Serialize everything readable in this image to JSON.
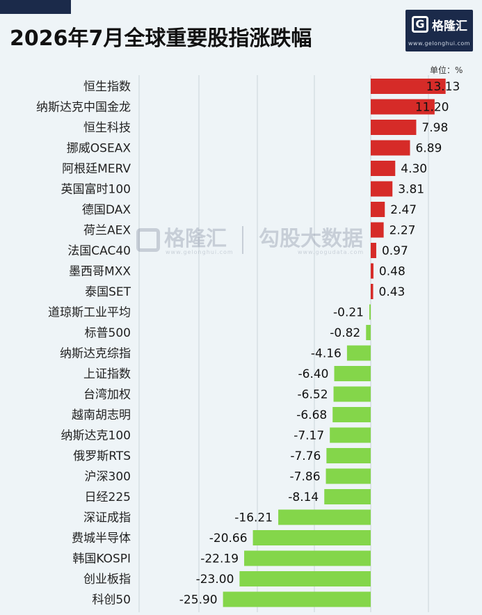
{
  "header": {
    "title": "2026年7月全球重要股指涨跌幅",
    "unit": "单位：%"
  },
  "logo": {
    "name": "格隆汇",
    "url": "www.gelonghui.com"
  },
  "watermark": {
    "brand": "格隆汇",
    "brand_url": "www.gelonghui.com",
    "partner": "勾股大数据",
    "partner_url": "www.gogudata.com"
  },
  "colors": {
    "positive": "#d62b28",
    "negative": "#84d64a",
    "gridline": "#c9d3da"
  },
  "chart_data": {
    "type": "bar",
    "orientation": "horizontal",
    "title": "2026年7月全球重要股指涨跌幅",
    "unit": "%",
    "categories": [
      "恒生指数",
      "纳斯达克中国金龙",
      "恒生科技",
      "挪威OSEAX",
      "阿根廷MERV",
      "英国富时100",
      "德国DAX",
      "荷兰AEX",
      "法国CAC40",
      "墨西哥MXX",
      "泰国SET",
      "道琼斯工业平均",
      "标普500",
      "纳斯达克综指",
      "上证指数",
      "台湾加权",
      "越南胡志明",
      "纳斯达克100",
      "俄罗斯RTS",
      "沪深300",
      "日经225",
      "深证成指",
      "费城半导体",
      "韩国KOSPI",
      "创业板指",
      "科创50"
    ],
    "values": [
      13.13,
      11.2,
      7.98,
      6.89,
      4.3,
      3.81,
      2.47,
      2.27,
      0.97,
      0.48,
      0.43,
      -0.21,
      -0.82,
      -4.16,
      -6.4,
      -6.52,
      -6.68,
      -7.17,
      -7.76,
      -7.86,
      -8.14,
      -16.21,
      -20.66,
      -22.19,
      -23.0,
      -25.9
    ],
    "value_labels": [
      "13.13",
      "11.20",
      "7.98",
      "6.89",
      "4.30",
      "3.81",
      "2.47",
      "2.27",
      "0.97",
      "0.48",
      "0.43",
      "-0.21",
      "-0.82",
      "-4.16",
      "-6.40",
      "-6.52",
      "-6.68",
      "-7.17",
      "-7.76",
      "-7.86",
      "-8.14",
      "-16.21",
      "-20.66",
      "-22.19",
      "-23.00",
      "-25.90"
    ],
    "grid": true
  }
}
